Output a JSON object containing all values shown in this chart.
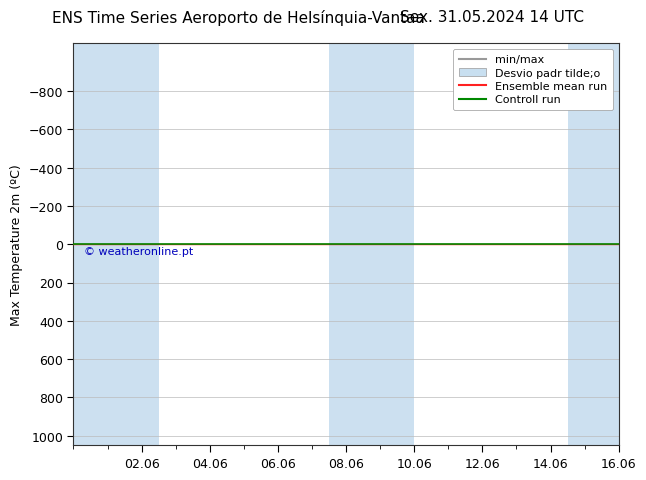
{
  "title_left": "ENS Time Series Aeroporto de Helsínquia-Vantaa",
  "title_right": "Sex. 31.05.2024 14 UTC",
  "ylabel": "Max Temperature 2m (ºC)",
  "yticks": [
    -800,
    -600,
    -400,
    -200,
    0,
    200,
    400,
    600,
    800,
    1000
  ],
  "xtick_labels": [
    "02.06",
    "04.06",
    "06.06",
    "08.06",
    "10.06",
    "12.06",
    "14.06",
    "16.06"
  ],
  "blue_shade_color": "#cce0f0",
  "control_run_color": "#008800",
  "ensemble_mean_color": "#ff2020",
  "watermark_text": "© weatheronline.pt",
  "watermark_color": "#0000bb",
  "background_color": "#ffffff",
  "title_fontsize": 11,
  "axis_fontsize": 9,
  "legend_fontsize": 8,
  "legend_min_max_color": "#aaaaaa",
  "legend_std_color": "#c8dff0"
}
